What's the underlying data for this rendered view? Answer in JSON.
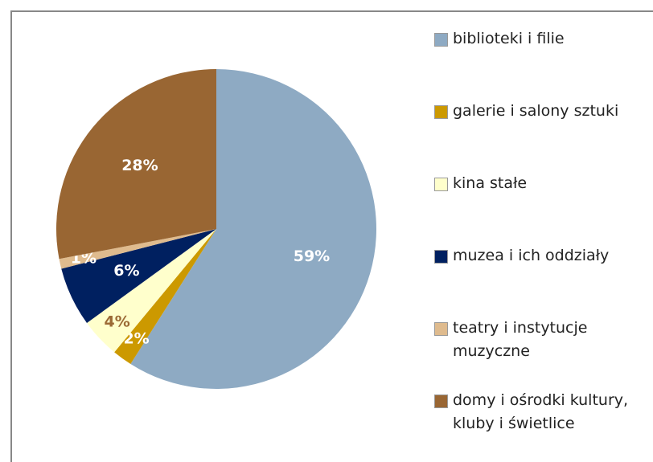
{
  "chart_data": {
    "type": "pie",
    "categories": [
      "biblioteki i filie",
      "galerie i salony sztuki",
      "kina stałe",
      "muzea i ich oddziały",
      "teatry i instytucje muzyczne",
      "domy i ośrodki kultury, kluby i świetlice"
    ],
    "values": [
      59,
      2,
      4,
      6,
      1,
      28
    ],
    "value_labels": [
      "59%",
      "2%",
      "4%",
      "6%",
      "1%",
      "28%"
    ],
    "colors": [
      "#8eaac3",
      "#cc9900",
      "#ffffcc",
      "#002060",
      "#dfbb8e",
      "#996633"
    ],
    "label_colors": [
      "#ffffff",
      "#ffffff",
      "#9b6a35",
      "#ffffff",
      "#ffffff",
      "#ffffff"
    ],
    "legend": "right"
  }
}
